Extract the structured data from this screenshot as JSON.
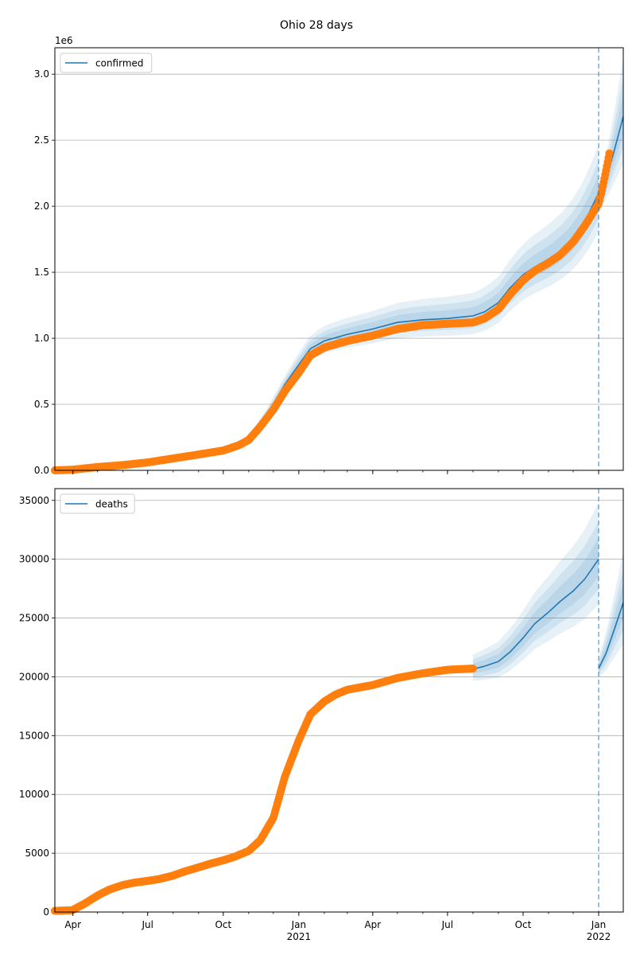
{
  "title": "Ohio 28 days",
  "colors": {
    "model": "#1f77b4",
    "observed": "#ff7f0e",
    "band": "#1f77b4",
    "grid": "#b0b0b0",
    "forecast_line": "#1f77b4"
  },
  "chart_data": [
    {
      "type": "line",
      "title": "Ohio 28 days",
      "legend": {
        "label": "confirmed",
        "placement": "top-left"
      },
      "y_multiplier_label": "1e6",
      "ylim": [
        0,
        3.2
      ],
      "yticks": [
        0.0,
        0.5,
        1.0,
        1.5,
        2.0,
        2.5,
        3.0
      ],
      "ytick_labels": [
        "0.0",
        "0.5",
        "1.0",
        "1.5",
        "2.0",
        "2.5",
        "3.0"
      ],
      "grid": "horizontal",
      "forecast_date": "2022-01-01",
      "model": {
        "x": [
          "2020-03-10",
          "2020-04-01",
          "2020-05-01",
          "2020-06-01",
          "2020-07-01",
          "2020-08-01",
          "2020-09-01",
          "2020-10-01",
          "2020-10-20",
          "2020-11-01",
          "2020-11-15",
          "2020-12-01",
          "2020-12-15",
          "2021-01-01",
          "2021-01-15",
          "2021-02-01",
          "2021-03-01",
          "2021-04-01",
          "2021-05-01",
          "2021-06-01",
          "2021-07-01",
          "2021-08-01",
          "2021-08-15",
          "2021-09-01",
          "2021-09-15",
          "2021-10-01",
          "2021-10-15",
          "2021-11-01",
          "2021-11-15",
          "2021-12-01",
          "2021-12-15",
          "2022-01-01"
        ],
        "y": [
          0.0,
          0.01,
          0.03,
          0.05,
          0.07,
          0.1,
          0.13,
          0.16,
          0.2,
          0.24,
          0.35,
          0.5,
          0.65,
          0.8,
          0.92,
          0.98,
          1.03,
          1.07,
          1.12,
          1.14,
          1.15,
          1.17,
          1.2,
          1.27,
          1.38,
          1.48,
          1.54,
          1.6,
          1.66,
          1.76,
          1.88,
          2.1
        ]
      },
      "forecast": {
        "x": [
          "2022-01-01",
          "2022-01-10",
          "2022-01-20",
          "2022-01-31"
        ],
        "y": [
          2.02,
          2.2,
          2.42,
          2.68
        ]
      },
      "observed": {
        "x": [
          "2020-03-10",
          "2020-04-01",
          "2020-05-01",
          "2020-06-01",
          "2020-07-01",
          "2020-08-01",
          "2020-09-01",
          "2020-10-01",
          "2020-10-20",
          "2020-11-01",
          "2020-11-15",
          "2020-12-01",
          "2020-12-15",
          "2021-01-01",
          "2021-01-15",
          "2021-02-01",
          "2021-03-01",
          "2021-04-01",
          "2021-05-01",
          "2021-06-01",
          "2021-07-01",
          "2021-08-01",
          "2021-08-15",
          "2021-09-01",
          "2021-09-15",
          "2021-10-01",
          "2021-10-15",
          "2021-11-01",
          "2021-11-15",
          "2021-12-01",
          "2021-12-15",
          "2022-01-01",
          "2022-01-05",
          "2022-01-10",
          "2022-01-14"
        ],
        "y": [
          0.0,
          0.005,
          0.025,
          0.04,
          0.06,
          0.09,
          0.12,
          0.15,
          0.19,
          0.23,
          0.33,
          0.46,
          0.6,
          0.74,
          0.87,
          0.93,
          0.98,
          1.02,
          1.07,
          1.1,
          1.11,
          1.12,
          1.15,
          1.22,
          1.33,
          1.44,
          1.51,
          1.57,
          1.63,
          1.73,
          1.85,
          2.02,
          2.12,
          2.27,
          2.4
        ]
      }
    },
    {
      "type": "line",
      "legend": {
        "label": "deaths",
        "placement": "top-left"
      },
      "ylim": [
        0,
        36000
      ],
      "yticks": [
        0,
        5000,
        10000,
        15000,
        20000,
        25000,
        30000,
        35000
      ],
      "ytick_labels": [
        "0",
        "5000",
        "10000",
        "15000",
        "20000",
        "25000",
        "30000",
        "35000"
      ],
      "grid": "horizontal",
      "forecast_date": "2022-01-01",
      "model": {
        "x": [
          "2021-08-01",
          "2021-08-15",
          "2021-09-01",
          "2021-09-15",
          "2021-10-01",
          "2021-10-15",
          "2021-11-01",
          "2021-11-15",
          "2021-12-01",
          "2021-12-15",
          "2022-01-01"
        ],
        "y": [
          20650,
          20900,
          21300,
          22100,
          23300,
          24500,
          25500,
          26400,
          27300,
          28300,
          30000
        ]
      },
      "forecast": {
        "x": [
          "2022-01-01",
          "2022-01-10",
          "2022-01-20",
          "2022-01-31"
        ],
        "y": [
          20700,
          22000,
          24000,
          26300
        ]
      },
      "observed": {
        "x": [
          "2020-03-10",
          "2020-03-31",
          "2020-04-15",
          "2020-05-01",
          "2020-05-15",
          "2020-06-01",
          "2020-06-15",
          "2020-07-01",
          "2020-07-15",
          "2020-08-01",
          "2020-08-15",
          "2020-09-01",
          "2020-09-15",
          "2020-10-01",
          "2020-10-15",
          "2020-11-01",
          "2020-11-15",
          "2020-12-01",
          "2020-12-15",
          "2021-01-01",
          "2021-01-15",
          "2021-02-01",
          "2021-02-15",
          "2021-03-01",
          "2021-04-01",
          "2021-05-01",
          "2021-06-01",
          "2021-07-01",
          "2021-08-01"
        ],
        "y": [
          100,
          150,
          700,
          1400,
          1900,
          2300,
          2500,
          2650,
          2800,
          3100,
          3450,
          3800,
          4100,
          4400,
          4700,
          5200,
          6100,
          8000,
          11500,
          14600,
          16800,
          17900,
          18500,
          18900,
          19300,
          19900,
          20300,
          20600,
          20700
        ]
      }
    }
  ],
  "x_axis": {
    "start": "2020-03-10",
    "end": "2022-01-31",
    "ticks": [
      {
        "date": "2020-04-01",
        "label": "Apr",
        "year": ""
      },
      {
        "date": "2020-07-01",
        "label": "Jul",
        "year": ""
      },
      {
        "date": "2020-10-01",
        "label": "Oct",
        "year": ""
      },
      {
        "date": "2021-01-01",
        "label": "Jan",
        "year": "2021"
      },
      {
        "date": "2021-04-01",
        "label": "Apr",
        "year": ""
      },
      {
        "date": "2021-07-01",
        "label": "Jul",
        "year": ""
      },
      {
        "date": "2021-10-01",
        "label": "Oct",
        "year": ""
      },
      {
        "date": "2022-01-01",
        "label": "Jan",
        "year": "2022"
      }
    ]
  }
}
